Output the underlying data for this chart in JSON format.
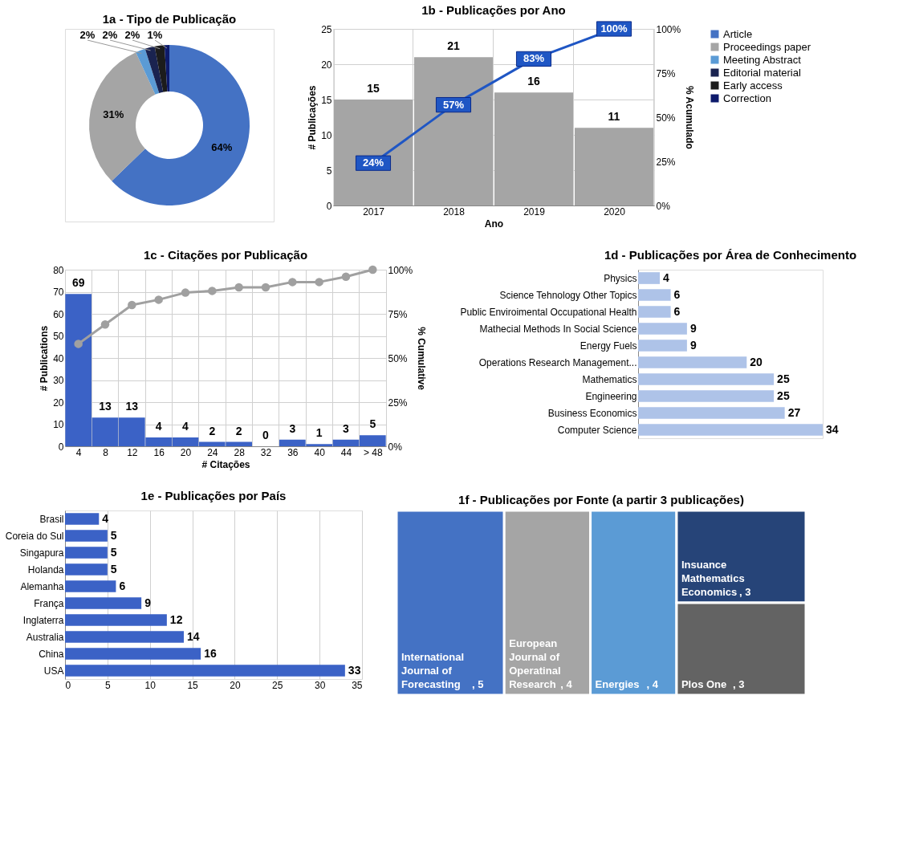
{
  "chart_data": [
    {
      "type": "donut",
      "title": "1a - Tipo de Publicação",
      "categories": [
        "Article",
        "Proceedings paper",
        "Meeting Abstract",
        "Editorial material",
        "Early access",
        "Correction"
      ],
      "values": [
        64,
        31,
        2,
        2,
        2,
        1
      ],
      "value_labels": [
        "64%",
        "31%",
        "2%",
        "2%",
        "2%",
        "1%"
      ],
      "colors": [
        "#4472c4",
        "#a5a5a5",
        "#5b9bd5",
        "#1a2350",
        "#1c1c1c",
        "#0d1a6b"
      ],
      "legend": "right"
    },
    {
      "type": "bar",
      "title": "1b - Publicações por Ano",
      "categories": [
        "2017",
        "2018",
        "2019",
        "2020"
      ],
      "xlabel": "Ano",
      "ylabel": "# Publicações",
      "y2label": "% Acumulado",
      "ylim": [
        0,
        25
      ],
      "yticks": [
        0,
        5,
        10,
        15,
        20,
        25
      ],
      "y2lim": [
        0,
        100
      ],
      "y2ticks": [
        {
          "value": 0,
          "label": "0%"
        },
        {
          "value": 25,
          "label": "25%"
        },
        {
          "value": 50,
          "label": "50%"
        },
        {
          "value": 75,
          "label": "75%"
        },
        {
          "value": 100,
          "label": "100%"
        }
      ],
      "grid": true,
      "series": [
        {
          "color": "#a5a5a5",
          "values": [
            15,
            21,
            16,
            11
          ],
          "value_labels": [
            "15",
            "21",
            "16",
            "11"
          ]
        },
        {
          "type": "line",
          "axis": "y2",
          "color": "#1f56c4",
          "marker": "square",
          "values": [
            24,
            57,
            83,
            100
          ],
          "value_labels": [
            "24%",
            "57%",
            "83%",
            "100%"
          ]
        }
      ]
    },
    {
      "type": "bar",
      "title": "1c - Citações por Publicação",
      "categories": [
        "4",
        "8",
        "12",
        "16",
        "20",
        "24",
        "28",
        "32",
        "36",
        "40",
        "44",
        "> 48"
      ],
      "xlabel": "# Citações",
      "ylabel": "# Publications",
      "y2label": "% Cumulative",
      "ylim": [
        0,
        80
      ],
      "yticks": [
        0,
        10,
        20,
        30,
        40,
        50,
        60,
        70,
        80
      ],
      "y2lim": [
        0,
        100
      ],
      "y2ticks": [
        {
          "value": 0,
          "label": "0%"
        },
        {
          "value": 25,
          "label": "25%"
        },
        {
          "value": 50,
          "label": "50%"
        },
        {
          "value": 75,
          "label": "75%"
        },
        {
          "value": 100,
          "label": "100%"
        }
      ],
      "grid": true,
      "series": [
        {
          "color": "#3b62c6",
          "values": [
            69,
            13,
            13,
            4,
            4,
            2,
            2,
            0,
            3,
            1,
            3,
            5
          ],
          "value_labels": [
            "69",
            "13",
            "13",
            "4",
            "4",
            "2",
            "2",
            "0",
            "3",
            "1",
            "3",
            "5"
          ]
        },
        {
          "type": "line",
          "axis": "y2",
          "color": "#a0a0a0",
          "marker": "circle",
          "values": [
            58,
            69,
            80,
            83,
            87,
            88,
            90,
            90,
            93,
            93,
            96,
            100
          ]
        }
      ]
    },
    {
      "type": "bar",
      "orientation": "horizontal",
      "title": "1d - Publicações por Área de Conhecimento",
      "categories": [
        "Physics",
        "Science Tehnology Other Topics",
        "Public Enviroimental Occupational Health",
        "Mathecial Methods In Social Science",
        "Energy Fuels",
        "Operations Research Management...",
        "Mathematics",
        "Engineering",
        "Business Economics",
        "Computer Science"
      ],
      "values": [
        4,
        6,
        6,
        9,
        9,
        20,
        25,
        25,
        27,
        34
      ],
      "color": "#aec3e8",
      "data_labels": true,
      "tick_labels": "y"
    },
    {
      "type": "bar",
      "orientation": "horizontal",
      "title": "1e - Publicações por País",
      "categories": [
        "Brasil",
        "Coreia do Sul",
        "Singapura",
        "Holanda",
        "Alemanha",
        "França",
        "Inglaterra",
        "Australia",
        "China",
        "USA"
      ],
      "values": [
        4,
        5,
        5,
        5,
        6,
        9,
        12,
        14,
        16,
        33
      ],
      "color": "#3b62c6",
      "data_labels": true,
      "xlim": [
        0,
        35
      ],
      "xticks": [
        0,
        5,
        10,
        15,
        20,
        25,
        30,
        35
      ],
      "grid": "x"
    },
    {
      "type": "other",
      "title": "1f - Publicações por Fonte (a partir 3 publicações)",
      "categories": [
        "International Journal of Forecasting",
        "European Journal of Operatinal Research",
        "Energies",
        "Insuance Mathematics Economics",
        "Plos One"
      ],
      "values": [
        5,
        4,
        4,
        3,
        3
      ],
      "value_labels": [
        ", 5",
        ", 4",
        ", 4",
        ", 3",
        ", 3"
      ],
      "colors": [
        "#4472c4",
        "#a5a5a5",
        "#5b9bd5",
        "#264478",
        "#636363"
      ]
    }
  ]
}
